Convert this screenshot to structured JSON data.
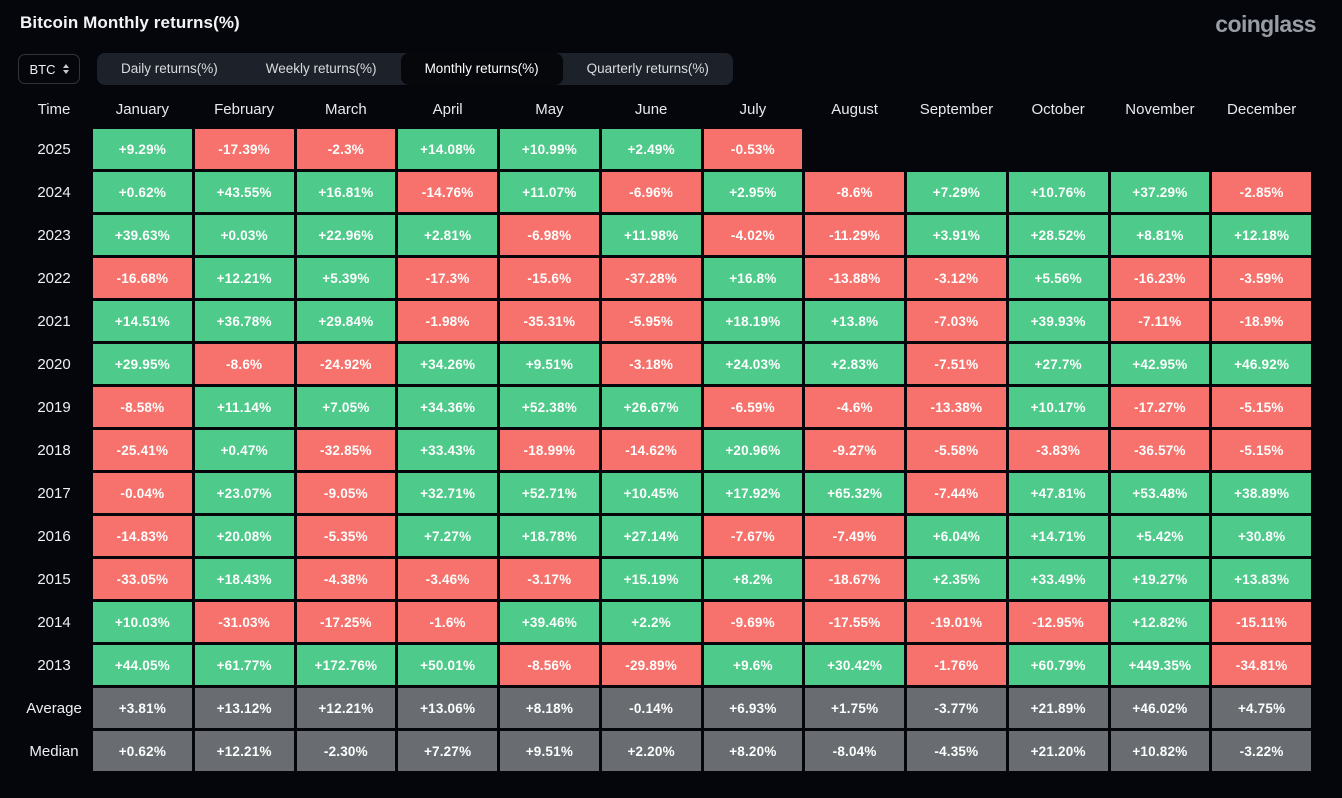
{
  "header": {
    "title": "Bitcoin Monthly returns(%)",
    "logo": "coinglass"
  },
  "toolbar": {
    "symbol_select": {
      "value": "BTC"
    },
    "tabs": [
      {
        "label": "Daily returns(%)",
        "active": false
      },
      {
        "label": "Weekly returns(%)",
        "active": false
      },
      {
        "label": "Monthly returns(%)",
        "active": true
      },
      {
        "label": "Quarterly returns(%)",
        "active": false
      }
    ]
  },
  "colors": {
    "positive": "#4eca8a",
    "negative": "#f7726c",
    "neutral": "#696d71",
    "background": "#04060b"
  },
  "chart_data": {
    "type": "heatmap",
    "title": "Bitcoin Monthly returns(%)",
    "columns": [
      "Time",
      "January",
      "February",
      "March",
      "April",
      "May",
      "June",
      "July",
      "August",
      "September",
      "October",
      "November",
      "December"
    ],
    "rows": [
      {
        "label": "2025",
        "values": [
          "+9.29%",
          "-17.39%",
          "-2.3%",
          "+14.08%",
          "+10.99%",
          "+2.49%",
          "-0.53%",
          null,
          null,
          null,
          null,
          null
        ]
      },
      {
        "label": "2024",
        "values": [
          "+0.62%",
          "+43.55%",
          "+16.81%",
          "-14.76%",
          "+11.07%",
          "-6.96%",
          "+2.95%",
          "-8.6%",
          "+7.29%",
          "+10.76%",
          "+37.29%",
          "-2.85%"
        ]
      },
      {
        "label": "2023",
        "values": [
          "+39.63%",
          "+0.03%",
          "+22.96%",
          "+2.81%",
          "-6.98%",
          "+11.98%",
          "-4.02%",
          "-11.29%",
          "+3.91%",
          "+28.52%",
          "+8.81%",
          "+12.18%"
        ]
      },
      {
        "label": "2022",
        "values": [
          "-16.68%",
          "+12.21%",
          "+5.39%",
          "-17.3%",
          "-15.6%",
          "-37.28%",
          "+16.8%",
          "-13.88%",
          "-3.12%",
          "+5.56%",
          "-16.23%",
          "-3.59%"
        ]
      },
      {
        "label": "2021",
        "values": [
          "+14.51%",
          "+36.78%",
          "+29.84%",
          "-1.98%",
          "-35.31%",
          "-5.95%",
          "+18.19%",
          "+13.8%",
          "-7.03%",
          "+39.93%",
          "-7.11%",
          "-18.9%"
        ]
      },
      {
        "label": "2020",
        "values": [
          "+29.95%",
          "-8.6%",
          "-24.92%",
          "+34.26%",
          "+9.51%",
          "-3.18%",
          "+24.03%",
          "+2.83%",
          "-7.51%",
          "+27.7%",
          "+42.95%",
          "+46.92%"
        ]
      },
      {
        "label": "2019",
        "values": [
          "-8.58%",
          "+11.14%",
          "+7.05%",
          "+34.36%",
          "+52.38%",
          "+26.67%",
          "-6.59%",
          "-4.6%",
          "-13.38%",
          "+10.17%",
          "-17.27%",
          "-5.15%"
        ]
      },
      {
        "label": "2018",
        "values": [
          "-25.41%",
          "+0.47%",
          "-32.85%",
          "+33.43%",
          "-18.99%",
          "-14.62%",
          "+20.96%",
          "-9.27%",
          "-5.58%",
          "-3.83%",
          "-36.57%",
          "-5.15%"
        ]
      },
      {
        "label": "2017",
        "values": [
          "-0.04%",
          "+23.07%",
          "-9.05%",
          "+32.71%",
          "+52.71%",
          "+10.45%",
          "+17.92%",
          "+65.32%",
          "-7.44%",
          "+47.81%",
          "+53.48%",
          "+38.89%"
        ]
      },
      {
        "label": "2016",
        "values": [
          "-14.83%",
          "+20.08%",
          "-5.35%",
          "+7.27%",
          "+18.78%",
          "+27.14%",
          "-7.67%",
          "-7.49%",
          "+6.04%",
          "+14.71%",
          "+5.42%",
          "+30.8%"
        ]
      },
      {
        "label": "2015",
        "values": [
          "-33.05%",
          "+18.43%",
          "-4.38%",
          "-3.46%",
          "-3.17%",
          "+15.19%",
          "+8.2%",
          "-18.67%",
          "+2.35%",
          "+33.49%",
          "+19.27%",
          "+13.83%"
        ]
      },
      {
        "label": "2014",
        "values": [
          "+10.03%",
          "-31.03%",
          "-17.25%",
          "-1.6%",
          "+39.46%",
          "+2.2%",
          "-9.69%",
          "-17.55%",
          "-19.01%",
          "-12.95%",
          "+12.82%",
          "-15.11%"
        ]
      },
      {
        "label": "2013",
        "values": [
          "+44.05%",
          "+61.77%",
          "+172.76%",
          "+50.01%",
          "-8.56%",
          "-29.89%",
          "+9.6%",
          "+30.42%",
          "-1.76%",
          "+60.79%",
          "+449.35%",
          "-34.81%"
        ]
      },
      {
        "label": "Average",
        "kind": "summary",
        "values": [
          "+3.81%",
          "+13.12%",
          "+12.21%",
          "+13.06%",
          "+8.18%",
          "-0.14%",
          "+6.93%",
          "+1.75%",
          "-3.77%",
          "+21.89%",
          "+46.02%",
          "+4.75%"
        ]
      },
      {
        "label": "Median",
        "kind": "summary",
        "values": [
          "+0.62%",
          "+12.21%",
          "-2.30%",
          "+7.27%",
          "+9.51%",
          "+2.20%",
          "+8.20%",
          "-8.04%",
          "-4.35%",
          "+21.20%",
          "+10.82%",
          "-3.22%"
        ]
      }
    ]
  }
}
